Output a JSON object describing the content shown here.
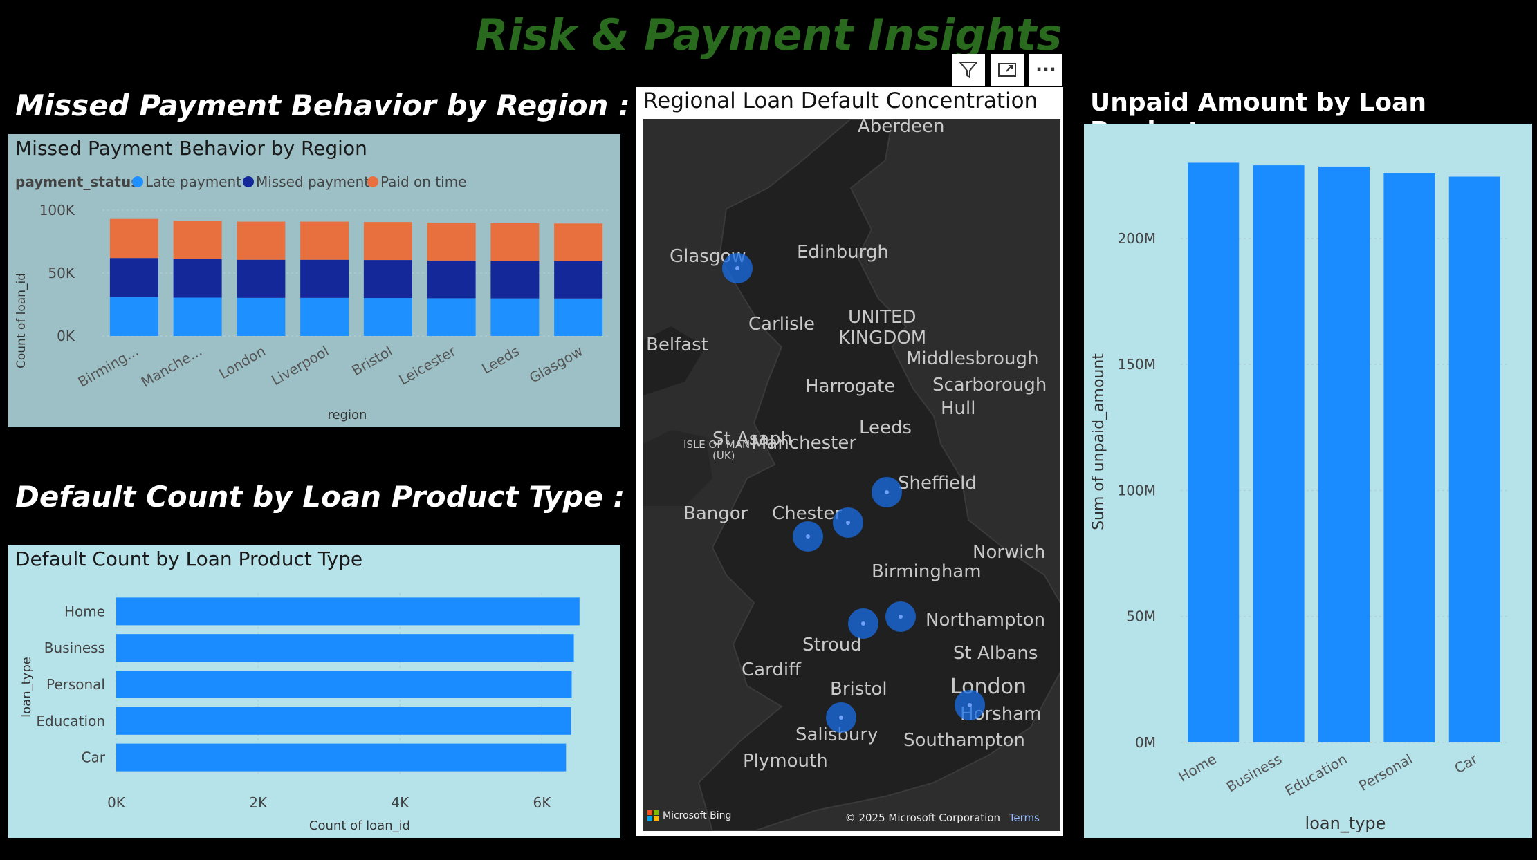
{
  "page": {
    "title": "Risk & Payment Insights",
    "section1_heading": "Missed Payment Behavior by Region :",
    "section2_heading": "Default Count by Loan Product Type :",
    "section4_heading": "Unpaid Amount by Loan Product :"
  },
  "toolbar": {
    "icons": [
      "filter-icon",
      "focus-mode-icon",
      "more-options-icon"
    ],
    "more_label": "···"
  },
  "colors": {
    "late": "#1e90ff",
    "missed": "#15289a",
    "paid": "#e8703f",
    "bar": "#1a8cff",
    "title_green": "#2a6a1f"
  },
  "map": {
    "title": "Regional Loan Default Concentration",
    "attribution_left": "Microsoft Bing",
    "attribution_right": "© 2025 Microsoft Corporation",
    "terms": "Terms",
    "labels": [
      {
        "text": "Aberdeen",
        "cls": ""
      },
      {
        "text": "Edinburgh",
        "cls": ""
      },
      {
        "text": "Glasgow",
        "cls": ""
      },
      {
        "text": "UNITED",
        "cls": ""
      },
      {
        "text": "KINGDOM",
        "cls": ""
      },
      {
        "text": "Carlisle",
        "cls": ""
      },
      {
        "text": "Belfast",
        "cls": ""
      },
      {
        "text": "ISLE OF MAN",
        "cls": "small"
      },
      {
        "text": "(UK)",
        "cls": "small"
      },
      {
        "text": "Middlesbrough",
        "cls": ""
      },
      {
        "text": "Harrogate",
        "cls": ""
      },
      {
        "text": "Scarborough",
        "cls": ""
      },
      {
        "text": "Hull",
        "cls": ""
      },
      {
        "text": "Manchester",
        "cls": ""
      },
      {
        "text": "Leeds",
        "cls": ""
      },
      {
        "text": "St Asaph",
        "cls": ""
      },
      {
        "text": "Sheffield",
        "cls": ""
      },
      {
        "text": "Bangor",
        "cls": ""
      },
      {
        "text": "Chester",
        "cls": ""
      },
      {
        "text": "Norwich",
        "cls": ""
      },
      {
        "text": "Birmingham",
        "cls": ""
      },
      {
        "text": "Northampton",
        "cls": ""
      },
      {
        "text": "Stroud",
        "cls": ""
      },
      {
        "text": "St Albans",
        "cls": ""
      },
      {
        "text": "Cardiff",
        "cls": ""
      },
      {
        "text": "Bristol",
        "cls": ""
      },
      {
        "text": "London",
        "cls": "big"
      },
      {
        "text": "Horsham",
        "cls": ""
      },
      {
        "text": "Salisbury",
        "cls": ""
      },
      {
        "text": "Southampton",
        "cls": ""
      },
      {
        "text": "Plymouth",
        "cls": ""
      }
    ],
    "bubbles": [
      "Glasgow",
      "Leeds",
      "Manchester",
      "Liverpool",
      "Birmingham",
      "Leicester",
      "Bristol",
      "London"
    ]
  },
  "chart_data": [
    {
      "type": "bar",
      "stacked": true,
      "title": "Missed Payment Behavior by Region",
      "legend_title": "payment_status",
      "legend_position": "top-left",
      "xlabel": "region",
      "ylabel": "Count of loan_id",
      "categories": [
        "Birming...",
        "Manche...",
        "London",
        "Liverpool",
        "Bristol",
        "Leicester",
        "Leeds",
        "Glasgow"
      ],
      "series": [
        {
          "name": "Late payment",
          "values": [
            31000,
            30500,
            30300,
            30300,
            30200,
            30000,
            29900,
            29800
          ]
        },
        {
          "name": "Missed payment",
          "values": [
            31000,
            30500,
            30300,
            30300,
            30200,
            30000,
            29900,
            29800
          ]
        },
        {
          "name": "Paid on time",
          "values": [
            31000,
            30500,
            30300,
            30300,
            30200,
            30000,
            29900,
            29800
          ]
        }
      ],
      "ylim": [
        0,
        100000
      ],
      "yticks": [
        "0K",
        "50K",
        "100K"
      ],
      "grid": true
    },
    {
      "type": "bar",
      "orientation": "horizontal",
      "title": "Default Count by Loan Product Type",
      "xlabel": "Count of loan_id",
      "ylabel": "loan_type",
      "categories": [
        "Home",
        "Business",
        "Personal",
        "Education",
        "Car"
      ],
      "values": [
        6530,
        6450,
        6420,
        6410,
        6340
      ],
      "xlim": [
        0,
        7000
      ],
      "xticks": [
        "0K",
        "2K",
        "4K",
        "6K"
      ],
      "grid": true
    },
    {
      "type": "bar",
      "title": "",
      "xlabel": "loan_type",
      "ylabel": "Sum of unpaid_amount",
      "categories": [
        "Home",
        "Business",
        "Education",
        "Personal",
        "Car"
      ],
      "values": [
        230000000,
        229000000,
        228500000,
        226000000,
        224500000
      ],
      "ylim": [
        0,
        240000000
      ],
      "yticks": [
        "0M",
        "50M",
        "100M",
        "150M",
        "200M"
      ],
      "grid": true
    }
  ]
}
